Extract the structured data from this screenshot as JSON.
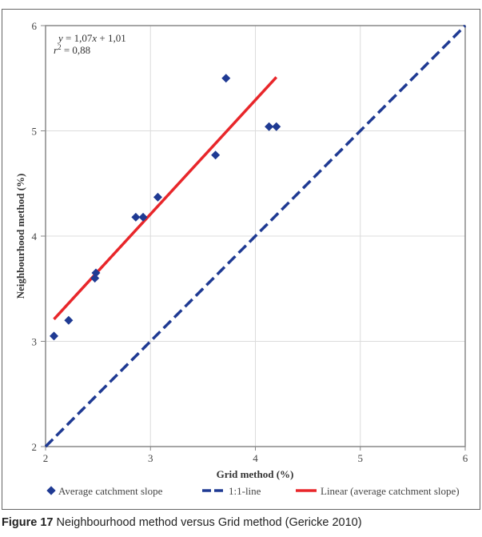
{
  "chart_data": {
    "type": "scatter",
    "title": "",
    "xlabel": "Grid method (%)",
    "ylabel": "Neighbourhood method (%)",
    "xlim": [
      2,
      6
    ],
    "ylim": [
      2,
      6
    ],
    "x_ticks": [
      2,
      3,
      4,
      5,
      6
    ],
    "y_ticks": [
      2,
      3,
      4,
      5,
      6
    ],
    "grid": "vertical and horizontal light gridlines",
    "legend_position": "bottom",
    "series": [
      {
        "name": "Average catchment slope",
        "kind": "scatter",
        "marker": "diamond",
        "color": "#1f3a93",
        "points": [
          {
            "x": 2.08,
            "y": 3.05
          },
          {
            "x": 2.22,
            "y": 3.2
          },
          {
            "x": 2.47,
            "y": 3.6
          },
          {
            "x": 2.48,
            "y": 3.65
          },
          {
            "x": 2.86,
            "y": 4.18
          },
          {
            "x": 2.93,
            "y": 4.18
          },
          {
            "x": 3.07,
            "y": 4.37
          },
          {
            "x": 3.62,
            "y": 4.77
          },
          {
            "x": 3.72,
            "y": 5.5
          },
          {
            "x": 4.13,
            "y": 5.04
          },
          {
            "x": 4.2,
            "y": 5.04
          }
        ]
      },
      {
        "name": "1:1-line",
        "kind": "line",
        "dash": "dashed",
        "color": "#1f3a93",
        "points": [
          {
            "x": 2,
            "y": 2
          },
          {
            "x": 6,
            "y": 6
          }
        ]
      },
      {
        "name": "Linear (average catchment slope)",
        "kind": "line",
        "dash": "solid",
        "color": "#e8262a",
        "points": [
          {
            "x": 2.08,
            "y": 3.21
          },
          {
            "x": 4.2,
            "y": 5.51
          }
        ]
      }
    ],
    "annotations": [
      {
        "text_parts": [
          "y",
          " = 1,07",
          "x",
          " + 1,01"
        ],
        "label": "y = 1,07x + 1,01"
      },
      {
        "text_parts": [
          "r",
          "2",
          " = 0,88"
        ],
        "label": "r² = 0,88"
      }
    ]
  },
  "annotation": {
    "eq_y": "y",
    "eq_mid": " = 1,07",
    "eq_x": "x",
    "eq_end": " + 1,01",
    "r_var": "r",
    "r_sup": "2",
    "r_val": " = 0,88"
  },
  "caption": {
    "figure_number": "Figure 17",
    "text": " Neighbourhood method versus Grid method (Gericke 2010)"
  }
}
